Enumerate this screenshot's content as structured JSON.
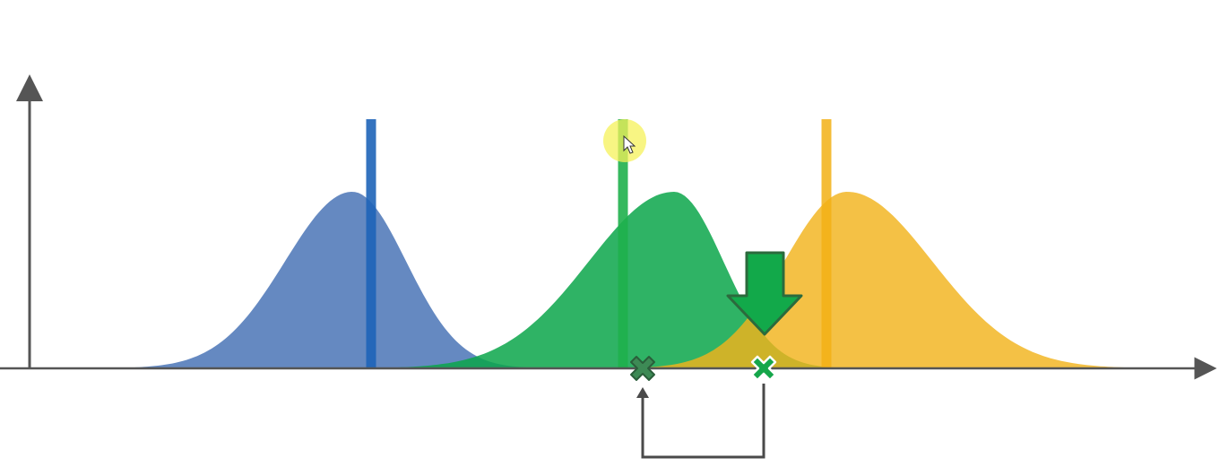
{
  "colors": {
    "background": "#ffffff",
    "axis": "#555555",
    "blue": "#4a74b6",
    "blue_bar": "#1e64b8",
    "green": "#0aa64a",
    "green_bar": "#1fb04c",
    "yellow": "#f1b31c",
    "yellow_bar": "#f2b015",
    "arrow_fill": "#12a94a",
    "arrow_stroke": "#2c6a3d",
    "marker_dark": "#3d8a55",
    "marker_light": "#15a64a",
    "connector": "#4a4a4a",
    "cursor_highlight": "#f5f25a"
  },
  "icons": {
    "down_arrow": "down-arrow-icon",
    "x_marker_current": "x-marker-icon",
    "x_marker_new": "x-marker-icon",
    "cursor": "cursor-icon"
  },
  "distributions": [
    {
      "name": "blue",
      "peak": 393,
      "height": 197,
      "sigma_left": 75,
      "sigma_right": 60,
      "bar": 414
    },
    {
      "name": "green",
      "peak": 752,
      "height": 197,
      "sigma_left": 95,
      "sigma_right": 55,
      "bar": 695
    },
    {
      "name": "yellow",
      "peak": 945,
      "height": 197,
      "sigma_left": 70,
      "sigma_right": 95,
      "bar": 922
    }
  ],
  "markers": {
    "current": 717,
    "new": 852
  }
}
